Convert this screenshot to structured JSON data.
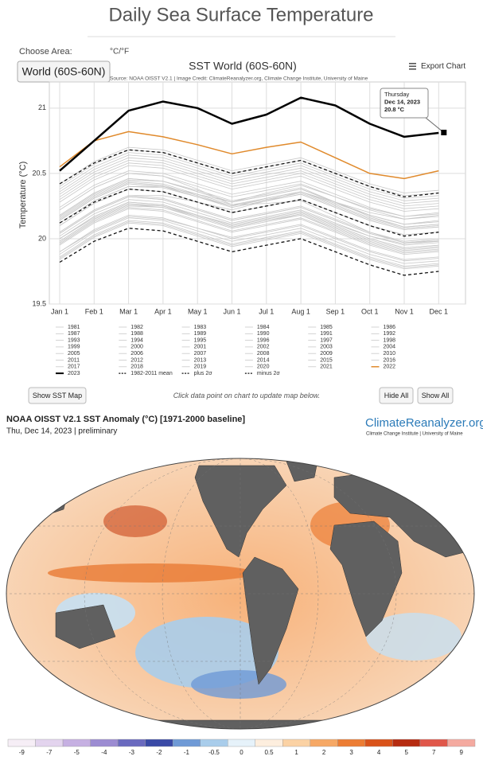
{
  "header": {
    "title": "Daily Sea Surface Temperature"
  },
  "controls": {
    "choose_area_label": "Choose Area:",
    "unit_toggle": "°C/°F",
    "area_select": "World (60S-60N)",
    "export": "Export Chart"
  },
  "chart_data": {
    "type": "line",
    "title": "SST World (60S-60N)",
    "subtitle": "Source: NOAA OISST V2.1 | Image Credit: ClimateReanalyzer.org, Climate Change Institute, University of Maine",
    "y_label": "Temperature (°C)",
    "categories": [
      "Jan 1",
      "Feb 1",
      "Mar 1",
      "Apr 1",
      "May 1",
      "Jun 1",
      "Jul 1",
      "Aug 1",
      "Sep 1",
      "Oct 1",
      "Nov 1",
      "Dec 1"
    ],
    "ylim": [
      19.5,
      21.2
    ],
    "yticks": [
      19.5,
      20,
      20.5,
      21
    ],
    "grid": true,
    "tooltip": {
      "day": "Thursday",
      "date": "Dec 14, 2023",
      "value": "20.8 °C"
    },
    "series": [
      {
        "name": "1981",
        "color": "#c8c8c8",
        "values": [
          19.88,
          20.05,
          20.16,
          20.14,
          20.06,
          19.98,
          20.03,
          20.08,
          19.98,
          19.88,
          19.81,
          19.83
        ]
      },
      {
        "name": "1982",
        "color": "#c8c8c8",
        "values": [
          19.85,
          20.02,
          20.13,
          20.11,
          20.03,
          19.95,
          20.0,
          20.05,
          19.95,
          19.85,
          19.78,
          19.8
        ]
      },
      {
        "name": "1983",
        "color": "#c8c8c8",
        "values": [
          19.98,
          20.15,
          20.26,
          20.24,
          20.16,
          20.08,
          20.13,
          20.18,
          20.08,
          19.98,
          19.91,
          19.93
        ]
      },
      {
        "name": "1984",
        "color": "#c8c8c8",
        "values": [
          19.86,
          20.03,
          20.14,
          20.12,
          20.04,
          19.96,
          20.01,
          20.06,
          19.96,
          19.86,
          19.79,
          19.81
        ]
      },
      {
        "name": "1985",
        "color": "#c8c8c8",
        "values": [
          19.84,
          20.01,
          20.12,
          20.1,
          20.02,
          19.94,
          19.99,
          20.04,
          19.94,
          19.84,
          19.77,
          19.79
        ]
      },
      {
        "name": "1986",
        "color": "#c8c8c8",
        "values": [
          19.9,
          20.07,
          20.18,
          20.16,
          20.08,
          20.0,
          20.05,
          20.1,
          20.0,
          19.9,
          19.83,
          19.85
        ]
      },
      {
        "name": "1987",
        "color": "#c8c8c8",
        "values": [
          20.0,
          20.17,
          20.28,
          20.26,
          20.18,
          20.1,
          20.15,
          20.2,
          20.1,
          20.0,
          19.93,
          19.95
        ]
      },
      {
        "name": "1988",
        "color": "#c8c8c8",
        "values": [
          20.02,
          20.19,
          20.3,
          20.28,
          20.2,
          20.12,
          20.17,
          20.22,
          20.12,
          20.02,
          19.95,
          19.97
        ]
      },
      {
        "name": "1989",
        "color": "#c8c8c8",
        "values": [
          19.9,
          20.06,
          20.17,
          20.15,
          20.08,
          20.01,
          20.06,
          20.11,
          20.01,
          19.91,
          19.84,
          19.86
        ]
      },
      {
        "name": "1990",
        "color": "#c8c8c8",
        "values": [
          19.97,
          20.14,
          20.25,
          20.24,
          20.17,
          20.09,
          20.14,
          20.19,
          20.09,
          19.99,
          19.92,
          19.94
        ]
      },
      {
        "name": "1991",
        "color": "#c8c8c8",
        "values": [
          20.0,
          20.16,
          20.27,
          20.25,
          20.17,
          20.09,
          20.14,
          20.18,
          20.07,
          19.97,
          19.9,
          19.92
        ]
      },
      {
        "name": "1992",
        "color": "#c8c8c8",
        "values": [
          19.95,
          20.12,
          20.23,
          20.21,
          20.13,
          20.05,
          20.1,
          20.15,
          20.05,
          19.95,
          19.88,
          19.9
        ]
      },
      {
        "name": "1993",
        "color": "#c8c8c8",
        "values": [
          19.96,
          20.13,
          20.24,
          20.22,
          20.14,
          20.06,
          20.11,
          20.16,
          20.06,
          19.96,
          19.89,
          19.91
        ]
      },
      {
        "name": "1994",
        "color": "#c8c8c8",
        "values": [
          19.98,
          20.15,
          20.26,
          20.25,
          20.18,
          20.11,
          20.16,
          20.21,
          20.11,
          20.02,
          19.96,
          19.98
        ]
      },
      {
        "name": "1995",
        "color": "#c8c8c8",
        "values": [
          20.04,
          20.21,
          20.32,
          20.3,
          20.22,
          20.14,
          20.19,
          20.24,
          20.14,
          20.04,
          19.97,
          19.99
        ]
      },
      {
        "name": "1996",
        "color": "#c8c8c8",
        "values": [
          20.0,
          20.17,
          20.28,
          20.26,
          20.18,
          20.1,
          20.15,
          20.2,
          20.1,
          20.0,
          19.93,
          19.95
        ]
      },
      {
        "name": "1997",
        "color": "#c8c8c8",
        "values": [
          20.05,
          20.22,
          20.33,
          20.33,
          20.28,
          20.22,
          20.29,
          20.36,
          20.28,
          20.2,
          20.15,
          20.18
        ]
      },
      {
        "name": "1998",
        "color": "#c8c8c8",
        "values": [
          20.22,
          20.39,
          20.5,
          20.48,
          20.38,
          20.26,
          20.27,
          20.29,
          20.17,
          20.05,
          19.97,
          19.98
        ]
      },
      {
        "name": "1999",
        "color": "#c8c8c8",
        "values": [
          20.05,
          20.22,
          20.33,
          20.31,
          20.23,
          20.15,
          20.2,
          20.25,
          20.15,
          20.05,
          19.98,
          20.0
        ]
      },
      {
        "name": "2000",
        "color": "#c8c8c8",
        "values": [
          20.04,
          20.21,
          20.32,
          20.3,
          20.22,
          20.14,
          20.19,
          20.24,
          20.14,
          20.04,
          19.97,
          19.99
        ]
      },
      {
        "name": "2001",
        "color": "#c8c8c8",
        "values": [
          20.1,
          20.27,
          20.38,
          20.36,
          20.28,
          20.2,
          20.25,
          20.3,
          20.2,
          20.1,
          20.03,
          20.05
        ]
      },
      {
        "name": "2002",
        "color": "#c8c8c8",
        "values": [
          20.14,
          20.31,
          20.42,
          20.4,
          20.32,
          20.24,
          20.29,
          20.34,
          20.24,
          20.14,
          20.07,
          20.09
        ]
      },
      {
        "name": "2003",
        "color": "#c8c8c8",
        "values": [
          20.18,
          20.35,
          20.46,
          20.44,
          20.36,
          20.28,
          20.33,
          20.38,
          20.28,
          20.18,
          20.11,
          20.13
        ]
      },
      {
        "name": "2004",
        "color": "#c8c8c8",
        "values": [
          20.15,
          20.32,
          20.43,
          20.41,
          20.33,
          20.25,
          20.3,
          20.35,
          20.25,
          20.15,
          20.08,
          20.1
        ]
      },
      {
        "name": "2005",
        "color": "#c8c8c8",
        "values": [
          20.17,
          20.34,
          20.45,
          20.44,
          20.37,
          20.29,
          20.34,
          20.39,
          20.28,
          20.17,
          20.09,
          20.11
        ]
      },
      {
        "name": "2006",
        "color": "#c8c8c8",
        "values": [
          20.12,
          20.29,
          20.4,
          20.39,
          20.32,
          20.25,
          20.31,
          20.36,
          20.27,
          20.18,
          20.11,
          20.14
        ]
      },
      {
        "name": "2007",
        "color": "#c8c8c8",
        "values": [
          20.16,
          20.33,
          20.44,
          20.42,
          20.34,
          20.26,
          20.31,
          20.36,
          20.26,
          20.16,
          20.09,
          20.11
        ]
      },
      {
        "name": "2008",
        "color": "#c8c8c8",
        "values": [
          20.1,
          20.27,
          20.38,
          20.36,
          20.28,
          20.2,
          20.25,
          20.3,
          20.2,
          20.1,
          20.03,
          20.05
        ]
      },
      {
        "name": "2009",
        "color": "#c8c8c8",
        "values": [
          20.12,
          20.29,
          20.4,
          20.4,
          20.34,
          20.28,
          20.35,
          20.41,
          20.32,
          20.23,
          20.17,
          20.2
        ]
      },
      {
        "name": "2010",
        "color": "#c8c8c8",
        "values": [
          20.28,
          20.45,
          20.56,
          20.54,
          20.46,
          20.38,
          20.43,
          20.48,
          20.38,
          20.28,
          20.21,
          20.23
        ]
      },
      {
        "name": "2011",
        "color": "#c8c8c8",
        "values": [
          20.14,
          20.31,
          20.42,
          20.4,
          20.32,
          20.24,
          20.29,
          20.34,
          20.24,
          20.14,
          20.07,
          20.09
        ]
      },
      {
        "name": "2012",
        "color": "#c8c8c8",
        "values": [
          20.18,
          20.35,
          20.46,
          20.44,
          20.36,
          20.28,
          20.33,
          20.38,
          20.28,
          20.18,
          20.11,
          20.13
        ]
      },
      {
        "name": "2013",
        "color": "#c8c8c8",
        "values": [
          20.22,
          20.39,
          20.5,
          20.48,
          20.4,
          20.32,
          20.37,
          20.42,
          20.32,
          20.22,
          20.15,
          20.17
        ]
      },
      {
        "name": "2014",
        "color": "#c8c8c8",
        "values": [
          20.24,
          20.41,
          20.52,
          20.5,
          20.42,
          20.34,
          20.39,
          20.44,
          20.34,
          20.24,
          20.17,
          20.19
        ]
      },
      {
        "name": "2015",
        "color": "#c8c8c8",
        "values": [
          20.3,
          20.47,
          20.58,
          20.56,
          20.48,
          20.4,
          20.45,
          20.5,
          20.4,
          20.3,
          20.23,
          20.25
        ]
      },
      {
        "name": "2016",
        "color": "#c8c8c8",
        "values": [
          20.42,
          20.59,
          20.7,
          20.68,
          20.6,
          20.52,
          20.57,
          20.62,
          20.52,
          20.42,
          20.35,
          20.37
        ]
      },
      {
        "name": "2017",
        "color": "#c8c8c8",
        "values": [
          20.36,
          20.53,
          20.64,
          20.62,
          20.54,
          20.46,
          20.51,
          20.56,
          20.46,
          20.36,
          20.29,
          20.31
        ]
      },
      {
        "name": "2018",
        "color": "#c8c8c8",
        "values": [
          20.32,
          20.49,
          20.6,
          20.58,
          20.5,
          20.42,
          20.47,
          20.52,
          20.42,
          20.32,
          20.25,
          20.27
        ]
      },
      {
        "name": "2019",
        "color": "#c8c8c8",
        "values": [
          20.38,
          20.55,
          20.66,
          20.64,
          20.56,
          20.48,
          20.53,
          20.58,
          20.48,
          20.38,
          20.31,
          20.33
        ]
      },
      {
        "name": "2020",
        "color": "#c8c8c8",
        "values": [
          20.4,
          20.57,
          20.68,
          20.66,
          20.58,
          20.5,
          20.55,
          20.6,
          20.5,
          20.4,
          20.33,
          20.35
        ]
      },
      {
        "name": "2021",
        "color": "#c8c8c8",
        "values": [
          20.34,
          20.51,
          20.62,
          20.6,
          20.52,
          20.44,
          20.49,
          20.54,
          20.44,
          20.34,
          20.27,
          20.29
        ]
      },
      {
        "name": "2022",
        "color": "#e08a2c",
        "line_width": 1.5,
        "values": [
          20.55,
          20.75,
          20.82,
          20.78,
          20.72,
          20.65,
          20.7,
          20.74,
          20.62,
          20.5,
          20.46,
          20.52
        ]
      },
      {
        "name": "2023",
        "color": "#000000",
        "line_width": 2.5,
        "values": [
          20.52,
          20.75,
          20.98,
          21.05,
          21.0,
          20.88,
          20.95,
          21.08,
          21.02,
          20.88,
          20.78,
          20.81
        ]
      },
      {
        "name": "1982-2011 mean",
        "color": "#111111",
        "dash": true,
        "line_width": 1.3,
        "values": [
          20.12,
          20.28,
          20.38,
          20.36,
          20.28,
          20.2,
          20.25,
          20.3,
          20.2,
          20.1,
          20.02,
          20.05
        ]
      },
      {
        "name": "plus 2σ",
        "color": "#111111",
        "dash": true,
        "line_width": 1.3,
        "values": [
          20.42,
          20.58,
          20.68,
          20.66,
          20.58,
          20.5,
          20.55,
          20.6,
          20.5,
          20.4,
          20.32,
          20.35
        ]
      },
      {
        "name": "minus 2σ",
        "color": "#111111",
        "dash": true,
        "line_width": 1.3,
        "values": [
          19.82,
          19.98,
          20.08,
          20.06,
          19.98,
          19.9,
          19.95,
          20.0,
          19.9,
          19.8,
          19.72,
          19.75
        ]
      }
    ]
  },
  "buttons": {
    "show_map": "Show SST Map",
    "note": "Click data point on chart to update map below.",
    "hide_all": "Hide All",
    "show_all": "Show All"
  },
  "map": {
    "title": "NOAA OISST V2.1 SST Anomaly (°C) [1971-2000 baseline]",
    "date": "Thu, Dec 14, 2023 | preliminary",
    "logo": "ClimateReanalyzer.org",
    "logo_subtitle": "Climate Change Institute | University of Maine",
    "colorbar": {
      "ticks": [
        -9,
        -7,
        -5,
        -4,
        -3,
        -2,
        -1,
        -0.5,
        0,
        0.5,
        1,
        2,
        3,
        4,
        5,
        7,
        9
      ],
      "colors": [
        "#f6eef6",
        "#e3d4ee",
        "#c6b0e2",
        "#9c8cd2",
        "#6a6abf",
        "#3a4aa6",
        "#6f9ad6",
        "#a9cdeb",
        "#e6f2fa",
        "#fdeede",
        "#fbd2a4",
        "#f6a865",
        "#ec7d34",
        "#d9531a",
        "#b62b10",
        "#e0574a",
        "#f4aaa0"
      ]
    }
  }
}
